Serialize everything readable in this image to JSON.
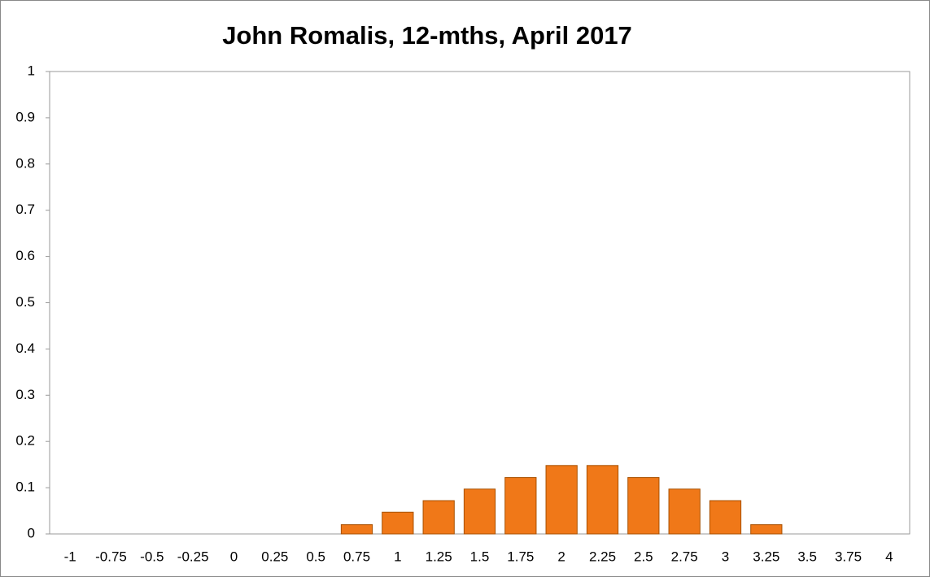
{
  "chart_data": {
    "type": "bar",
    "title": "John Romalis, 12-mths, April 2017",
    "categories": [
      "-1",
      "-0.75",
      "-0.5",
      "-0.25",
      "0",
      "0.25",
      "0.5",
      "0.75",
      "1",
      "1.25",
      "1.5",
      "1.75",
      "2",
      "2.25",
      "2.5",
      "2.75",
      "3",
      "3.25",
      "3.5",
      "3.75",
      "4"
    ],
    "values": [
      0,
      0,
      0,
      0,
      0,
      0,
      0,
      0.02,
      0.047,
      0.072,
      0.097,
      0.122,
      0.148,
      0.148,
      0.122,
      0.097,
      0.072,
      0.02,
      0,
      0,
      0
    ],
    "color": "#f07818",
    "ylim": [
      0,
      1
    ],
    "yticks": [
      0,
      0.1,
      0.2,
      0.3,
      0.4,
      0.5,
      0.6,
      0.7,
      0.8,
      0.9,
      1
    ],
    "grid": false
  }
}
